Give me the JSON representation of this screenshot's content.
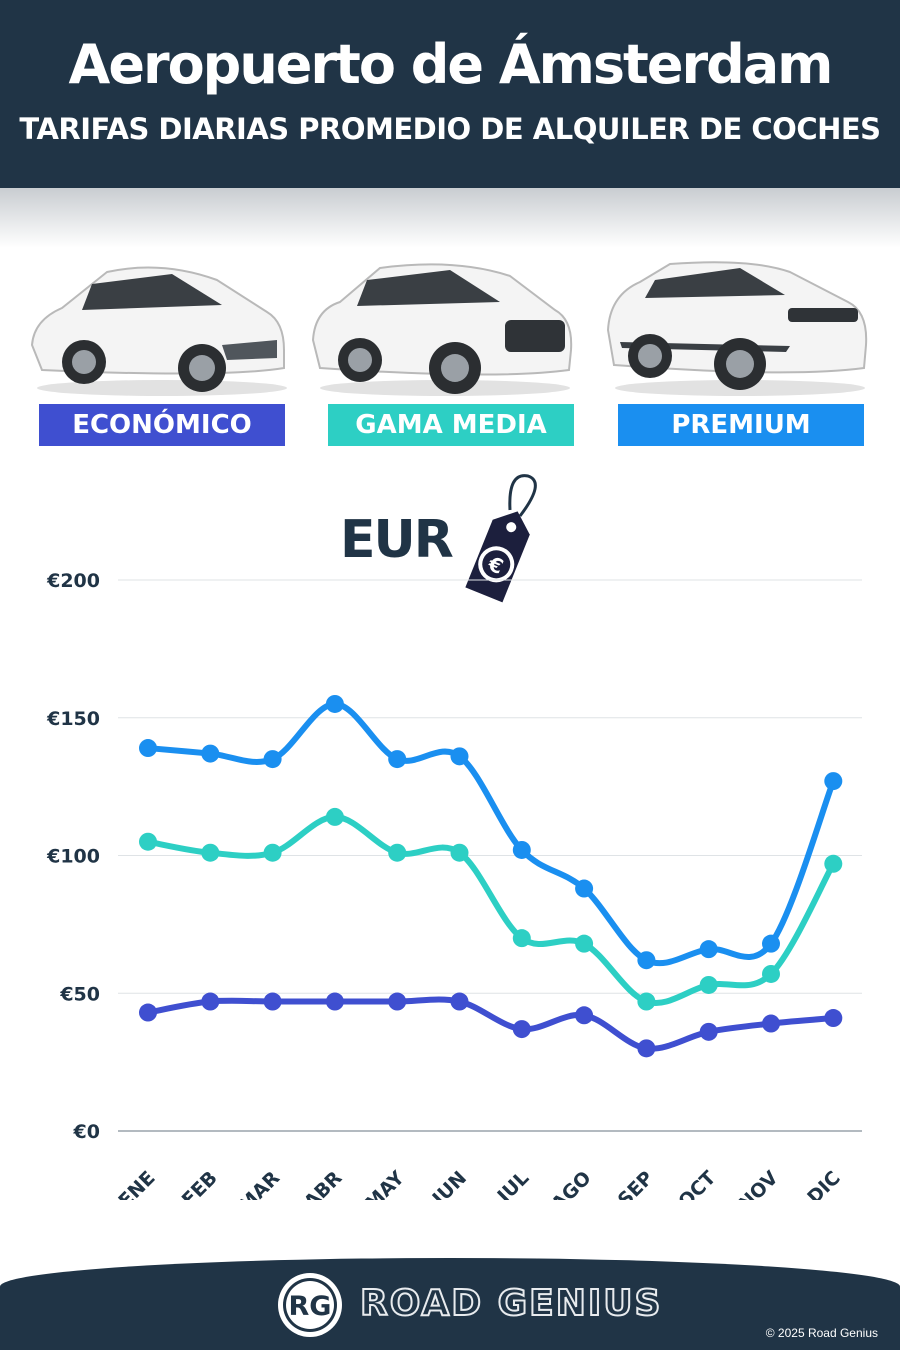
{
  "header": {
    "title": "Aeropuerto de Ámsterdam",
    "subtitle": "TARIFAS DIARIAS PROMEDIO DE ALQUILER DE COCHES"
  },
  "categories_legend": [
    {
      "label": "ECONÓMICO",
      "color": "#3f4fd0"
    },
    {
      "label": "GAMA MEDIA",
      "color": "#2dcfc4"
    },
    {
      "label": "PREMIUM",
      "color": "#1a8ff0"
    }
  ],
  "currency_label": "EUR",
  "currency_icon": "euro-price-tag-icon",
  "footer": {
    "brand": "ROAD GENIUS",
    "badge": "RG",
    "copyright": "© 2025 Road Genius"
  },
  "chart_data": {
    "type": "line",
    "title": "",
    "xlabel": "",
    "ylabel": "",
    "categories": [
      "ENE",
      "FEB",
      "MAR",
      "ABR",
      "MAY",
      "JUN",
      "JUL",
      "AGO",
      "SEP",
      "OCT",
      "NOV",
      "DIC"
    ],
    "ylim": [
      0,
      200
    ],
    "yticks": [
      0,
      50,
      100,
      150,
      200
    ],
    "ytick_labels": [
      "€0",
      "€50",
      "€100",
      "€150",
      "€200"
    ],
    "grid": true,
    "series": [
      {
        "name": "PREMIUM",
        "color": "#1a8ff0",
        "values": [
          139,
          137,
          135,
          155,
          135,
          136,
          102,
          88,
          62,
          66,
          68,
          127
        ]
      },
      {
        "name": "GAMA MEDIA",
        "color": "#2dcfc4",
        "values": [
          105,
          101,
          101,
          114,
          101,
          101,
          70,
          68,
          47,
          53,
          57,
          97
        ]
      },
      {
        "name": "ECONÓMICO",
        "color": "#3f4fd0",
        "values": [
          43,
          47,
          47,
          47,
          47,
          47,
          37,
          42,
          30,
          36,
          39,
          41
        ]
      }
    ]
  }
}
